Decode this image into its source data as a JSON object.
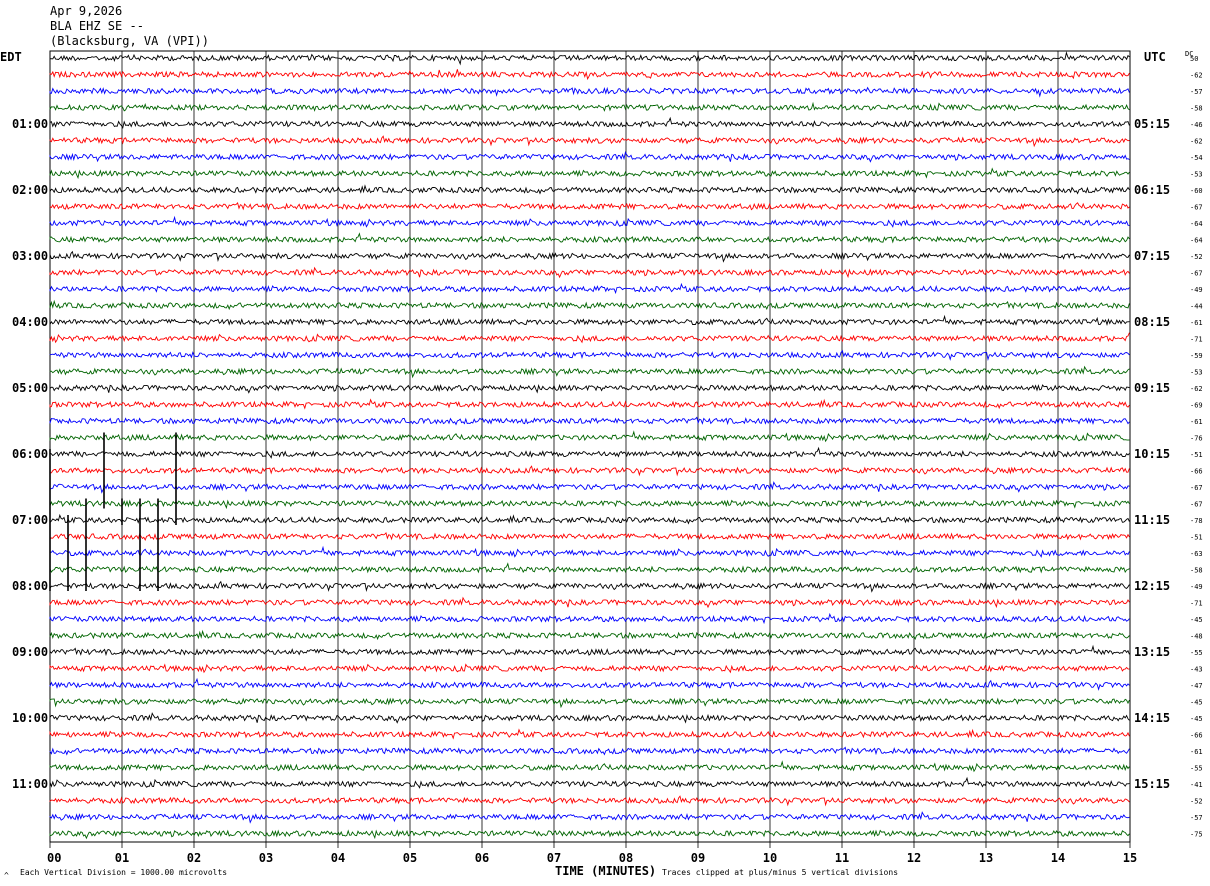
{
  "header": {
    "date": "Apr 9,2026",
    "station": "BLA EHZ SE --",
    "location": "(Blacksburg, VA (VPI))"
  },
  "left_tz": "EDT",
  "right_tz": "UTC",
  "dc_label": "DC",
  "footer": {
    "scale_note": "Each Vertical Division = 1000.00 microvolts",
    "axis_title": "TIME (MINUTES)",
    "clip_note": "Traces clipped at plus/minus 5 vertical divisions",
    "corner_mark": "^"
  },
  "colors": {
    "trace_cycle": [
      "#000000",
      "#ff0000",
      "#0000ff",
      "#006400"
    ],
    "grid": "#000000"
  },
  "chart_data": {
    "type": "line",
    "x_ticks": [
      "00",
      "01",
      "02",
      "03",
      "04",
      "05",
      "06",
      "07",
      "08",
      "09",
      "10",
      "11",
      "12",
      "13",
      "14",
      "15"
    ],
    "xlim": [
      0,
      15
    ],
    "rows_per_hour": 4,
    "left_hour_labels": [
      "01:00",
      "02:00",
      "03:00",
      "04:00",
      "05:00",
      "06:00",
      "07:00",
      "08:00",
      "09:00",
      "10:00",
      "11:00"
    ],
    "right_hour_labels": [
      "05:15",
      "06:15",
      "07:15",
      "08:15",
      "09:15",
      "10:15",
      "11:15",
      "12:15",
      "13:15",
      "14:15",
      "15:15"
    ],
    "dc_offsets": [
      "50",
      "-62",
      "-57",
      "-58",
      "-46",
      "-62",
      "-54",
      "-53",
      "-60",
      "-67",
      "-64",
      "-64",
      "-52",
      "-67",
      "-49",
      "-44",
      "-61",
      "-71",
      "-59",
      "-53",
      "-62",
      "-69",
      "-61",
      "-76",
      "-51",
      "-66",
      "-67",
      "-67",
      "-78",
      "-51",
      "-63",
      "-58",
      "-49",
      "-71",
      "-45",
      "-48",
      "-55",
      "-43",
      "-47",
      "-45",
      "-45",
      "-66",
      "-61",
      "-55",
      "-41",
      "-52",
      "-57",
      "-75"
    ],
    "spikes": [
      {
        "minute": 0.0,
        "row_top": 24,
        "row_bottom": 32
      },
      {
        "minute": 0.25,
        "row_top": 28,
        "row_bottom": 32
      },
      {
        "minute": 0.5,
        "row_top": 27,
        "row_bottom": 32
      },
      {
        "minute": 0.75,
        "row_top": 23,
        "row_bottom": 27
      },
      {
        "minute": 1.0,
        "row_top": 27,
        "row_bottom": 28
      },
      {
        "minute": 1.25,
        "row_top": 27,
        "row_bottom": 32
      },
      {
        "minute": 1.5,
        "row_top": 27,
        "row_bottom": 32
      },
      {
        "minute": 1.75,
        "row_top": 23,
        "row_bottom": 28
      }
    ]
  }
}
